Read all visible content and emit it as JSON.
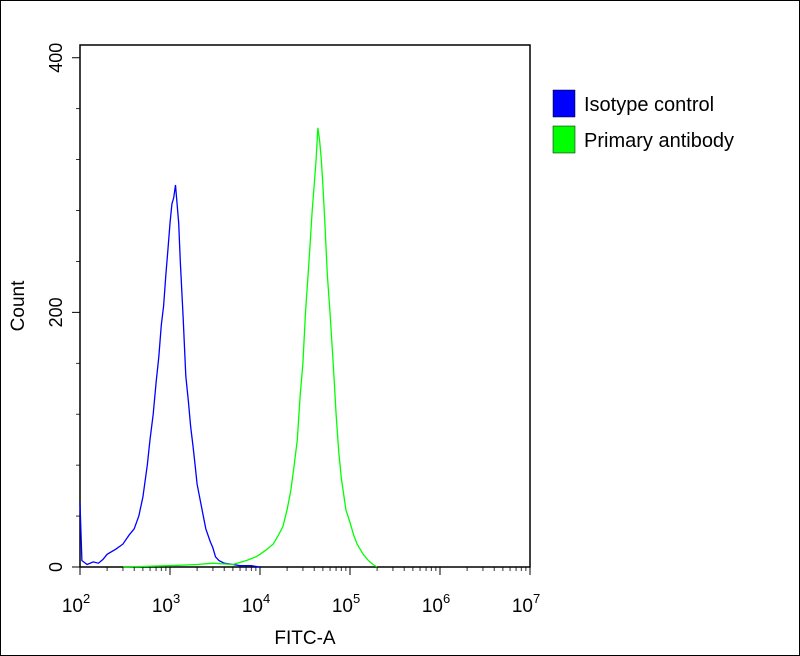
{
  "chart_data": {
    "type": "line",
    "title": "",
    "xlabel": "FITC-A",
    "ylabel": "Count",
    "x_scale": "log10",
    "xlim": [
      100,
      10000000
    ],
    "ylim": [
      0,
      410
    ],
    "x_ticks": [
      {
        "value": 100,
        "base": "10",
        "exp": "2"
      },
      {
        "value": 1000,
        "base": "10",
        "exp": "3"
      },
      {
        "value": 10000,
        "base": "10",
        "exp": "4"
      },
      {
        "value": 100000,
        "base": "10",
        "exp": "5"
      },
      {
        "value": 1000000,
        "base": "10",
        "exp": "6"
      },
      {
        "value": 10000000,
        "base": "10",
        "exp": "7"
      }
    ],
    "y_ticks": [
      {
        "value": 0,
        "label": "0"
      },
      {
        "value": 200,
        "label": "200"
      },
      {
        "value": 400,
        "label": "400"
      }
    ],
    "legend_position": "right",
    "series": [
      {
        "name": "Isotype control",
        "color": "#0000ff",
        "points": [
          [
            100,
            50
          ],
          [
            105,
            5
          ],
          [
            120,
            2
          ],
          [
            140,
            4
          ],
          [
            160,
            3
          ],
          [
            180,
            6
          ],
          [
            200,
            10
          ],
          [
            250,
            14
          ],
          [
            300,
            18
          ],
          [
            350,
            25
          ],
          [
            400,
            30
          ],
          [
            450,
            40
          ],
          [
            500,
            55
          ],
          [
            560,
            80
          ],
          [
            600,
            100
          ],
          [
            650,
            120
          ],
          [
            700,
            145
          ],
          [
            750,
            165
          ],
          [
            800,
            190
          ],
          [
            850,
            205
          ],
          [
            900,
            230
          ],
          [
            950,
            250
          ],
          [
            1000,
            270
          ],
          [
            1050,
            285
          ],
          [
            1100,
            290
          ],
          [
            1150,
            300
          ],
          [
            1200,
            285
          ],
          [
            1250,
            270
          ],
          [
            1300,
            240
          ],
          [
            1400,
            195
          ],
          [
            1500,
            150
          ],
          [
            1600,
            130
          ],
          [
            1700,
            110
          ],
          [
            1800,
            95
          ],
          [
            1900,
            80
          ],
          [
            2000,
            65
          ],
          [
            2200,
            50
          ],
          [
            2500,
            30
          ],
          [
            2800,
            20
          ],
          [
            3000,
            15
          ],
          [
            3200,
            8
          ],
          [
            3500,
            5
          ],
          [
            4000,
            3
          ],
          [
            5000,
            2
          ],
          [
            6000,
            1
          ],
          [
            8000,
            1
          ],
          [
            10000,
            0
          ]
        ]
      },
      {
        "name": "Primary antibody",
        "color": "#00ff00",
        "points": [
          [
            300,
            0
          ],
          [
            1000,
            1
          ],
          [
            2000,
            2
          ],
          [
            3000,
            3
          ],
          [
            5000,
            2
          ],
          [
            7000,
            5
          ],
          [
            9000,
            8
          ],
          [
            10000,
            10
          ],
          [
            12000,
            14
          ],
          [
            14000,
            18
          ],
          [
            16000,
            25
          ],
          [
            18000,
            32
          ],
          [
            20000,
            45
          ],
          [
            22000,
            60
          ],
          [
            24000,
            80
          ],
          [
            26000,
            100
          ],
          [
            28000,
            135
          ],
          [
            30000,
            160
          ],
          [
            32000,
            200
          ],
          [
            35000,
            240
          ],
          [
            38000,
            280
          ],
          [
            40000,
            300
          ],
          [
            42000,
            320
          ],
          [
            44000,
            345
          ],
          [
            46000,
            335
          ],
          [
            48000,
            320
          ],
          [
            50000,
            300
          ],
          [
            53000,
            265
          ],
          [
            56000,
            230
          ],
          [
            60000,
            200
          ],
          [
            65000,
            160
          ],
          [
            70000,
            120
          ],
          [
            75000,
            90
          ],
          [
            80000,
            70
          ],
          [
            90000,
            45
          ],
          [
            100000,
            35
          ],
          [
            110000,
            25
          ],
          [
            120000,
            18
          ],
          [
            140000,
            10
          ],
          [
            160000,
            5
          ],
          [
            180000,
            2
          ],
          [
            200000,
            0
          ]
        ]
      }
    ]
  }
}
